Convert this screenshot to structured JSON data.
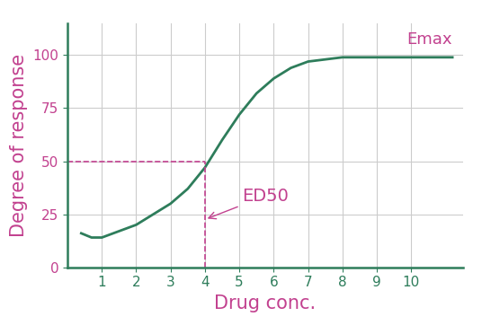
{
  "chart_data": {
    "type": "line",
    "x_label": "Drug conc.",
    "y_label": "Degree of response",
    "x": [
      0.4,
      0.7,
      1,
      1.5,
      2,
      2.5,
      3,
      3.5,
      4,
      4.5,
      5,
      5.5,
      6,
      6.5,
      7,
      7.5,
      8,
      9,
      10,
      11.2
    ],
    "values": [
      16,
      14,
      14,
      17,
      20,
      25,
      30,
      37,
      47,
      60,
      72,
      82,
      89,
      94,
      97,
      98,
      99,
      99,
      99,
      99
    ],
    "color": "#2e7d5b",
    "xlim": [
      0,
      11.5
    ],
    "xticks": [
      1,
      2,
      3,
      4,
      5,
      6,
      7,
      8,
      9,
      10
    ],
    "ylim": [
      0,
      115
    ],
    "yticks": [
      0,
      25,
      50,
      75,
      100
    ],
    "grid": true,
    "annotations": [
      {
        "text": "ED50",
        "x": 4,
        "y": 50
      },
      {
        "text": "Emax",
        "x": 11.2,
        "y": 99
      }
    ]
  }
}
